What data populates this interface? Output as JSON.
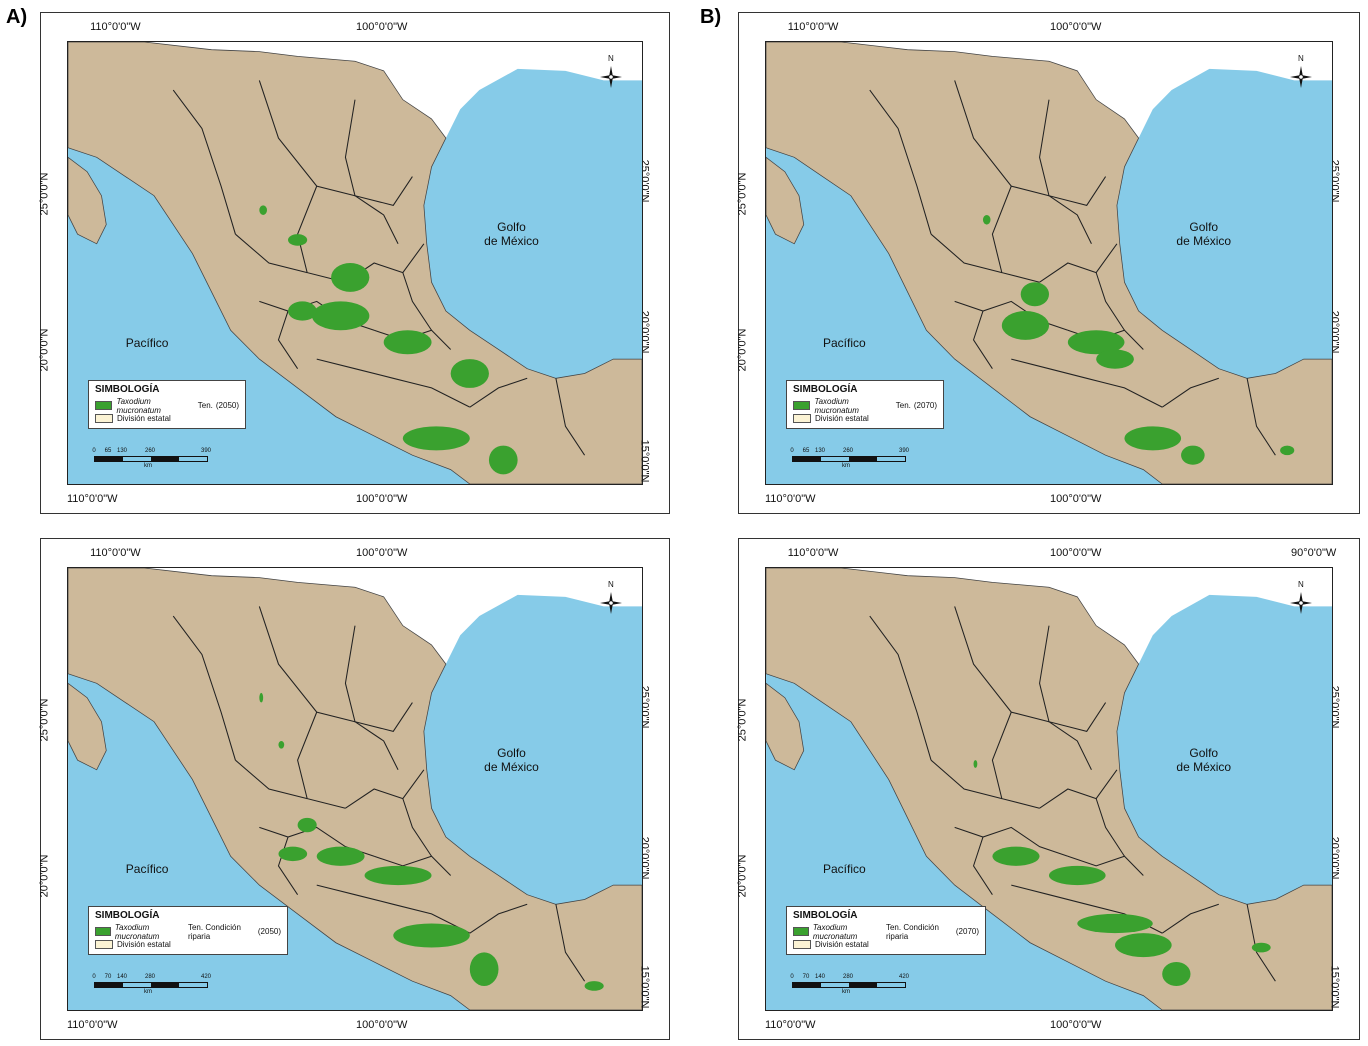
{
  "panel_labels": [
    "A)",
    "B)"
  ],
  "coords": {
    "lon_110": "110°0'0\"W",
    "lon_100": "100°0'0\"W",
    "lon_90": "90°0'0\"W",
    "lat_25": "25°0'0\"N",
    "lat_20": "20°0'0\"N",
    "lat_15": "15°0'0\"N"
  },
  "seas": {
    "pacific": "Pacífico",
    "gulf_line1": "Golfo",
    "gulf_line2": "de México"
  },
  "north_letter": "N",
  "legend": {
    "title": "SIMBOLOGÍA",
    "species": "Taxodium mucronatum",
    "author": "Ten.",
    "riparian": "Ten. Condición riparia",
    "state_division": "División estatal"
  },
  "maps": [
    {
      "id": "a-top",
      "year_label": "(2050)",
      "riparian": false,
      "scale_ticks": [
        "0",
        "65",
        "130",
        "260",
        "390"
      ],
      "scale_unit": "km"
    },
    {
      "id": "b-top",
      "year_label": "(2070)",
      "riparian": false,
      "scale_ticks": [
        "0",
        "65",
        "130",
        "260",
        "390"
      ],
      "scale_unit": "km"
    },
    {
      "id": "a-bottom",
      "year_label": "(2050)",
      "riparian": true,
      "scale_ticks": [
        "0",
        "70",
        "140",
        "280",
        "420"
      ],
      "scale_unit": "km"
    },
    {
      "id": "b-bottom",
      "year_label": "(2070)",
      "riparian": true,
      "scale_ticks": [
        "0",
        "70",
        "140",
        "280",
        "420"
      ],
      "scale_unit": "km"
    }
  ],
  "colors": {
    "ocean": "#86cbe8",
    "land": "#cdb99a",
    "usa": "#ffffff",
    "distribution": "#3aa12f",
    "border": "#222222"
  }
}
